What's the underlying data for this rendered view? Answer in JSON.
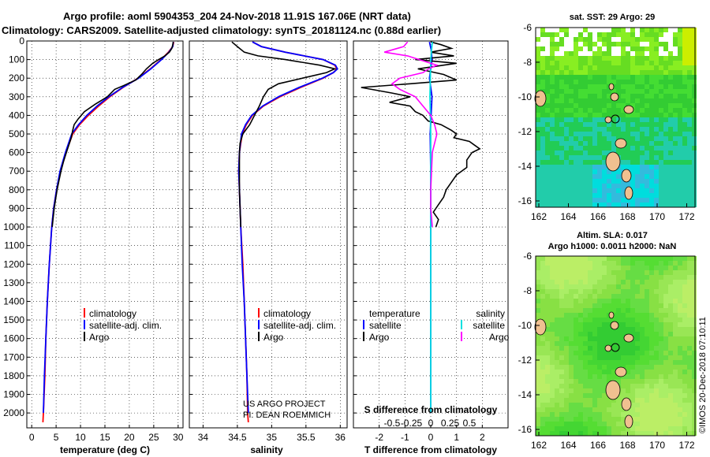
{
  "title_line1": "Argo profile: aoml 5904353_204 24-Nov-2018 11.91S 167.06E (NRT data)",
  "title_line2": "Climatology: CARS2009. Satellite-adjusted climatology: synTS_20181124.nc (0.88d earlier)",
  "project_text": {
    "line1": "US ARGO PROJECT",
    "line2": "PI: DEAN ROEMMICH"
  },
  "watermark": "©IMOS 20-Dec-2018 07:10:11",
  "colors": {
    "climatology": "#ff0000",
    "satellite": "#0000ff",
    "argo": "#000000",
    "sal_sat": "#00e0e0",
    "sal_argo": "#ff00ff"
  },
  "chart_data": [
    {
      "type": "line",
      "id": "temperature-profile",
      "xlabel": "temperature (deg C)",
      "ylabel": "",
      "xlim": [
        -1,
        31
      ],
      "ylim": [
        2080,
        0
      ],
      "x_ticks": [
        0,
        5,
        10,
        15,
        20,
        25,
        30
      ],
      "y_ticks": [
        0,
        100,
        200,
        300,
        400,
        500,
        600,
        700,
        800,
        900,
        1000,
        1100,
        1200,
        1300,
        1400,
        1500,
        1600,
        1700,
        1800,
        1900,
        2000
      ],
      "y_tick_labels": [
        "0",
        "100",
        "200",
        "300",
        "400",
        "500",
        "600",
        "700",
        "800",
        "900",
        "1000",
        "1100",
        "1200",
        "1300",
        "1400",
        "1500",
        "1600",
        "1700",
        "1800",
        "1900",
        "2000"
      ],
      "legend": [
        "climatology",
        "satellite-adj. clim.",
        "Argo"
      ],
      "series": [
        {
          "name": "climatology",
          "color": "#ff0000",
          "depth": [
            5,
            30,
            60,
            100,
            150,
            200,
            250,
            300,
            350,
            400,
            450,
            500,
            600,
            700,
            800,
            900,
            1000,
            1200,
            1400,
            1600,
            1800,
            2000,
            2050
          ],
          "values": [
            29.1,
            28.9,
            28.0,
            26.5,
            24.3,
            21.8,
            18.7,
            16.0,
            13.7,
            11.6,
            9.8,
            8.4,
            7.0,
            5.9,
            5.1,
            4.5,
            4.1,
            3.6,
            3.2,
            2.9,
            2.7,
            2.4,
            2.3
          ]
        },
        {
          "name": "satellite-adj. clim.",
          "color": "#0000ff",
          "depth": [
            5,
            30,
            60,
            100,
            150,
            200,
            250,
            300,
            350,
            400,
            450,
            500,
            600,
            700,
            800,
            900,
            1000,
            1200,
            1400,
            1600,
            1800,
            2000
          ],
          "values": [
            29.0,
            28.9,
            28.1,
            26.6,
            24.4,
            21.9,
            18.6,
            15.8,
            13.4,
            11.3,
            9.6,
            8.2,
            6.9,
            5.8,
            5.1,
            4.5,
            4.1,
            3.6,
            3.2,
            2.9,
            2.6,
            2.4
          ]
        },
        {
          "name": "Argo",
          "color": "#000000",
          "depth": [
            5,
            20,
            40,
            60,
            80,
            100,
            120,
            150,
            180,
            210,
            240,
            260,
            300,
            340,
            380,
            420,
            450,
            480,
            520,
            560,
            600,
            650,
            700,
            750,
            800,
            850,
            900,
            950,
            1000
          ],
          "values": [
            29.0,
            28.9,
            28.7,
            28.2,
            27.3,
            26.0,
            24.8,
            23.5,
            22.5,
            21.3,
            18.8,
            17.0,
            15.5,
            13.0,
            10.8,
            9.5,
            8.7,
            8.4,
            8.1,
            7.6,
            7.1,
            6.5,
            6.0,
            5.6,
            5.2,
            4.9,
            4.6,
            4.4,
            4.2
          ]
        }
      ]
    },
    {
      "type": "line",
      "id": "salinity-profile",
      "xlabel": "salinity",
      "xlim": [
        33.8,
        36.1
      ],
      "ylim": [
        2080,
        0
      ],
      "x_ticks": [
        34,
        34.5,
        35,
        35.5,
        36
      ],
      "x_tick_labels": [
        "34",
        "34.5",
        "35",
        "35.5",
        "36"
      ],
      "legend": [
        "climatology",
        "satellite-adj. clim.",
        "Argo"
      ],
      "series": [
        {
          "name": "climatology",
          "color": "#ff0000",
          "depth": [
            5,
            30,
            60,
            100,
            130,
            150,
            170,
            200,
            250,
            300,
            350,
            400,
            450,
            500,
            600,
            700,
            800,
            1000,
            1200,
            1400,
            1600,
            1800,
            2000,
            2050
          ],
          "values": [
            34.72,
            34.85,
            35.2,
            35.75,
            35.92,
            35.95,
            35.9,
            35.75,
            35.42,
            35.12,
            34.88,
            34.72,
            34.63,
            34.57,
            34.53,
            34.52,
            34.53,
            34.55,
            34.58,
            34.6,
            34.62,
            34.64,
            34.65,
            34.66
          ]
        },
        {
          "name": "satellite-adj. clim.",
          "color": "#0000ff",
          "depth": [
            5,
            30,
            60,
            100,
            130,
            150,
            170,
            200,
            250,
            300,
            350,
            400,
            450,
            500,
            600,
            700,
            800,
            1000,
            1200,
            1400,
            1600,
            1800,
            2000
          ],
          "values": [
            34.72,
            34.85,
            35.2,
            35.75,
            35.93,
            35.96,
            35.9,
            35.74,
            35.4,
            35.1,
            34.87,
            34.71,
            34.62,
            34.56,
            34.53,
            34.52,
            34.53,
            34.55,
            34.57,
            34.6,
            34.62,
            34.64,
            34.66
          ]
        },
        {
          "name": "Argo",
          "color": "#000000",
          "depth": [
            5,
            30,
            60,
            80,
            100,
            130,
            150,
            170,
            200,
            230,
            260,
            300,
            350,
            400,
            450,
            500,
            550,
            600,
            700,
            800,
            900,
            1000
          ],
          "values": [
            34.42,
            34.5,
            34.6,
            34.8,
            35.2,
            35.7,
            35.92,
            35.8,
            35.45,
            35.1,
            34.95,
            34.88,
            34.82,
            34.75,
            34.68,
            34.58,
            34.54,
            34.53,
            34.53,
            34.53,
            34.54,
            34.55
          ]
        }
      ]
    },
    {
      "type": "line",
      "id": "difference-profile",
      "xlabel": "T difference from climatology",
      "xlabel_top": "S difference from climatology",
      "xlim": [
        -3,
        3
      ],
      "ylim": [
        2080,
        0
      ],
      "x_ticks": [
        -2,
        -1,
        0,
        1,
        2
      ],
      "x_tick_labels": [
        "-2",
        "-1",
        "0",
        "1",
        "2"
      ],
      "s_ticks": [
        -0.5,
        -0.25,
        0,
        0.25,
        0.5
      ],
      "s_tick_labels": [
        "-0.5",
        "-0.25",
        "0",
        "0.25",
        "0.5"
      ],
      "legend_left_header": "temperature",
      "legend_right_header": "salinity",
      "legend_left": [
        "satellite",
        "Argo"
      ],
      "legend_right": [
        "satellite",
        "Argo"
      ],
      "series": [
        {
          "name": "T satellite",
          "color": "#0000ff",
          "depth": [
            5,
            50,
            100,
            200,
            300,
            500,
            700,
            1000,
            1500,
            2000
          ],
          "values": [
            -0.05,
            0.02,
            0.05,
            -0.05,
            0.05,
            -0.02,
            0.0,
            0.0,
            0.0,
            0.0
          ]
        },
        {
          "name": "T Argo",
          "color": "#000000",
          "depth": [
            5,
            20,
            40,
            60,
            80,
            100,
            120,
            150,
            180,
            210,
            230,
            250,
            280,
            300,
            330,
            350,
            380,
            400,
            430,
            450,
            480,
            500,
            520,
            540,
            560,
            580,
            600,
            640,
            680,
            720,
            760,
            800,
            840,
            880,
            920,
            960,
            1000
          ],
          "values": [
            0.0,
            0.4,
            0.8,
            0.0,
            0.9,
            -0.6,
            1.0,
            -0.5,
            0.5,
            1.0,
            -0.8,
            -2.7,
            -1.5,
            -0.8,
            -1.6,
            -0.8,
            -0.6,
            -0.3,
            -0.1,
            0.4,
            0.8,
            1.0,
            0.9,
            1.5,
            1.7,
            1.9,
            1.6,
            1.4,
            1.4,
            1.0,
            0.8,
            0.6,
            0.5,
            0.3,
            0.1,
            0.3,
            0.2
          ]
        },
        {
          "name": "S satellite",
          "color": "#00e0e0",
          "depth": [
            5,
            100,
            300,
            500,
            1000,
            1500,
            2000
          ],
          "values": [
            0.02,
            0.0,
            -0.01,
            0.0,
            0.0,
            0.0,
            0.0
          ]
        },
        {
          "name": "S Argo",
          "color": "#ff00ff",
          "depth": [
            5,
            30,
            60,
            80,
            100,
            130,
            150,
            170,
            200,
            230,
            260,
            300,
            350,
            400,
            450,
            500,
            550,
            600,
            700,
            800,
            900,
            1000
          ],
          "values": [
            -0.3,
            -0.35,
            -0.6,
            -0.3,
            -0.15,
            0.08,
            -0.03,
            -0.1,
            -0.4,
            -0.5,
            -0.4,
            -0.2,
            -0.1,
            0.0,
            0.05,
            0.08,
            0.05,
            0.02,
            0.01,
            0.0,
            0.0,
            0.02
          ]
        }
      ]
    }
  ],
  "maps": [
    {
      "id": "sst-map",
      "title": "sat. SST: 29 Argo: 29",
      "title2": "",
      "y_ticks": [
        "-6",
        "-8",
        "-10",
        "-12",
        "-14",
        "-16"
      ],
      "x_ticks": [
        "162",
        "164",
        "166",
        "168",
        "170",
        "172"
      ],
      "palette": [
        "#33cc33",
        "#22cc55",
        "#44dd33",
        "#66dd22",
        "#88ee22",
        "#22ccaa",
        "#33bbdd",
        "#00dddd",
        "#ccee00"
      ]
    },
    {
      "id": "sla-map",
      "title": "Altim. SLA: 0.017",
      "title2": "Argo h1000: 0.0011 h2000: NaN",
      "y_ticks": [
        "-6",
        "-8",
        "-10",
        "-12",
        "-14",
        "-16"
      ],
      "x_ticks": [
        "162",
        "164",
        "166",
        "168",
        "170",
        "172"
      ],
      "palette": [
        "#33cc33",
        "#44d633",
        "#55dd33",
        "#66dd44",
        "#88e044",
        "#99e655",
        "#aaee66",
        "#bbee66"
      ]
    }
  ]
}
